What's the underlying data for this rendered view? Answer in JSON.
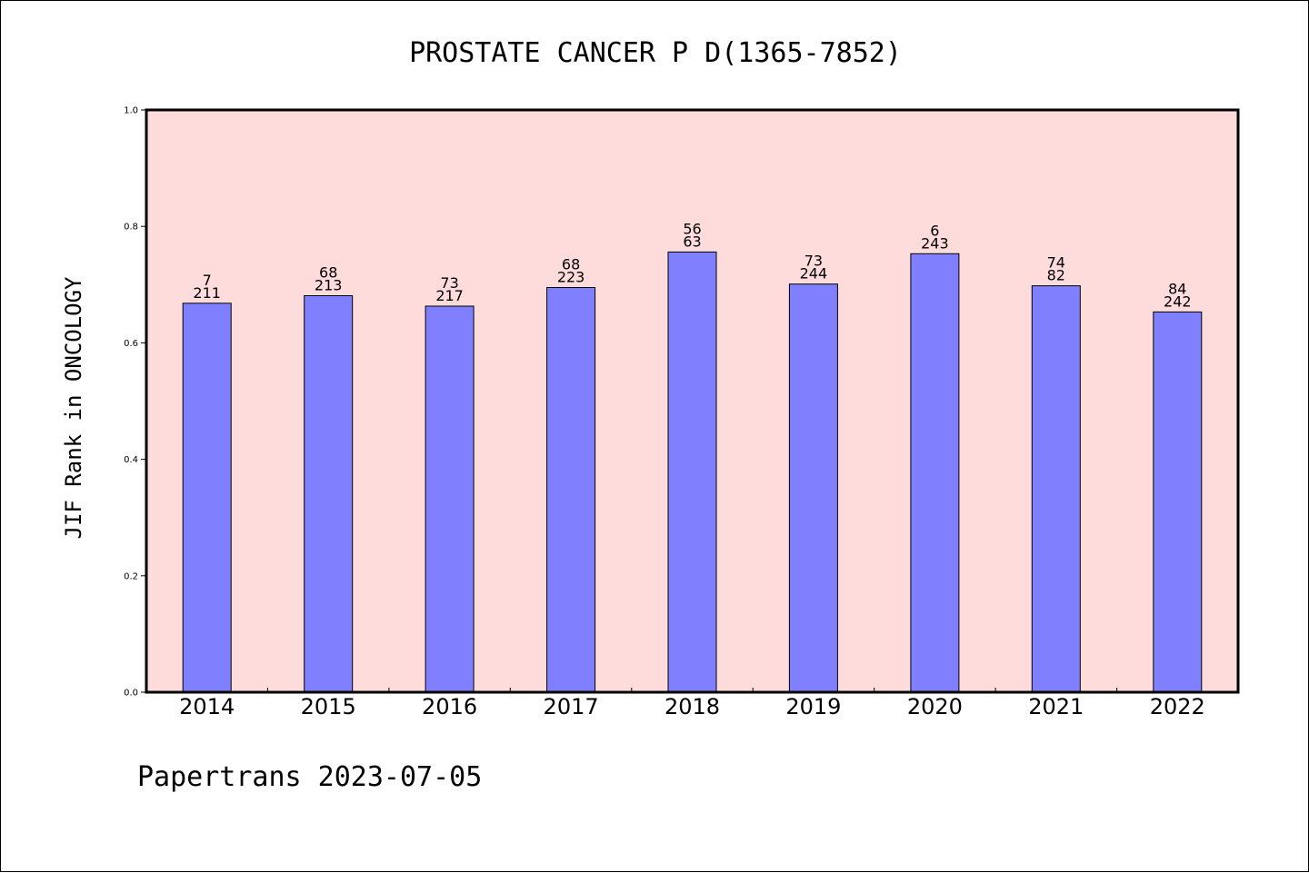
{
  "chart_data": {
    "type": "bar",
    "title": "PROSTATE CANCER P D(1365-7852)",
    "ylabel": "JIF Rank in ONCOLOGY",
    "xlabel": "",
    "ylim": [
      0.0,
      1.0
    ],
    "yticks": [
      "0.0",
      "0.2",
      "0.4",
      "0.6",
      "0.8",
      "1.0"
    ],
    "grid": false,
    "categories": [
      "2014",
      "2015",
      "2016",
      "2017",
      "2018",
      "2019",
      "2020",
      "2021",
      "2022"
    ],
    "values": [
      0.668,
      0.681,
      0.663,
      0.695,
      0.756,
      0.701,
      0.753,
      0.698,
      0.653
    ],
    "rank_labels": [
      "7",
      "68",
      "73",
      "68",
      "56",
      "73",
      "6",
      "74",
      "84"
    ],
    "total_labels": [
      "211",
      "213",
      "217",
      "223",
      "63",
      "244",
      "243",
      "82",
      "242"
    ],
    "colors": {
      "bar": "#8080ff",
      "plot_background": "#ffdcdc"
    }
  },
  "footer": {
    "text": "Papertrans 2023-07-05"
  }
}
